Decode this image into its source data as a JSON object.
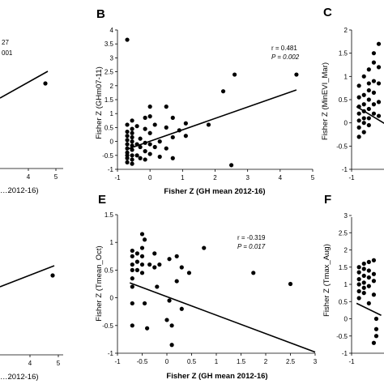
{
  "chart_data": [
    {
      "panel": "A",
      "type": "scatter",
      "partial": true,
      "xlabel": "…2012-16)",
      "xticks": [
        "4",
        "5"
      ],
      "stats": [
        "27",
        "001"
      ],
      "points": [
        [
          4.5,
          1.05
        ]
      ]
    },
    {
      "panel": "B",
      "type": "scatter",
      "xlabel": "Fisher Z (GH mean 2012-16)",
      "ylabel": "Fisher Z (GHm07-11)",
      "xlim": [
        -1,
        5
      ],
      "ylim": [
        -1,
        4
      ],
      "xticks": [
        "-1",
        "0",
        "1",
        "2",
        "3",
        "4",
        "5"
      ],
      "yticks": [
        "-1",
        "-0.5",
        "0",
        "0.5",
        "1",
        "1.5",
        "2",
        "2.5",
        "3",
        "3.5",
        "4"
      ],
      "stats": [
        "r = 0.481",
        "P = 0.002"
      ],
      "fit": [
        [
          -0.75,
          -0.3
        ],
        [
          4.5,
          1.85
        ]
      ],
      "points": [
        [
          -0.7,
          3.65
        ],
        [
          -0.7,
          0.6
        ],
        [
          -0.7,
          0.35
        ],
        [
          -0.7,
          0.2
        ],
        [
          -0.7,
          0.05
        ],
        [
          -0.7,
          -0.1
        ],
        [
          -0.7,
          -0.25
        ],
        [
          -0.7,
          -0.4
        ],
        [
          -0.7,
          -0.5
        ],
        [
          -0.7,
          -0.6
        ],
        [
          -0.7,
          -0.75
        ],
        [
          -0.55,
          0.75
        ],
        [
          -0.55,
          0.45
        ],
        [
          -0.55,
          0.3
        ],
        [
          -0.55,
          0.15
        ],
        [
          -0.55,
          0.0
        ],
        [
          -0.55,
          -0.15
        ],
        [
          -0.55,
          -0.3
        ],
        [
          -0.55,
          -0.5
        ],
        [
          -0.55,
          -0.65
        ],
        [
          -0.55,
          -0.8
        ],
        [
          -0.4,
          0.55
        ],
        [
          -0.4,
          -0.1
        ],
        [
          -0.4,
          -0.5
        ],
        [
          -0.3,
          0.1
        ],
        [
          -0.3,
          -0.2
        ],
        [
          -0.3,
          -0.6
        ],
        [
          -0.15,
          0.85
        ],
        [
          -0.15,
          0.45
        ],
        [
          -0.15,
          -0.05
        ],
        [
          -0.15,
          -0.35
        ],
        [
          -0.15,
          -0.65
        ],
        [
          0.0,
          1.25
        ],
        [
          0.0,
          0.9
        ],
        [
          0.0,
          0.3
        ],
        [
          0.0,
          -0.1
        ],
        [
          0.0,
          -0.45
        ],
        [
          0.15,
          0.6
        ],
        [
          0.15,
          -0.2
        ],
        [
          0.3,
          0.0
        ],
        [
          0.3,
          -0.55
        ],
        [
          0.5,
          1.25
        ],
        [
          0.5,
          0.5
        ],
        [
          0.5,
          -0.25
        ],
        [
          0.7,
          0.85
        ],
        [
          0.7,
          0.15
        ],
        [
          0.7,
          -0.6
        ],
        [
          0.9,
          0.4
        ],
        [
          1.1,
          0.65
        ],
        [
          1.1,
          0.2
        ],
        [
          1.8,
          0.6
        ],
        [
          2.5,
          -0.85
        ],
        [
          2.6,
          2.4
        ],
        [
          2.25,
          1.8
        ],
        [
          4.5,
          2.4
        ]
      ]
    },
    {
      "panel": "C",
      "type": "scatter",
      "partial": true,
      "ylabel": "Fisher Z (MinEVI_Mar)",
      "yticks": [
        "2",
        "1.5",
        "1",
        "0.5",
        "0",
        "-0.5",
        "-1"
      ],
      "xticks": [
        "-1",
        "0"
      ],
      "ylim": [
        -1,
        2
      ],
      "points": [
        [
          -0.85,
          0.8
        ],
        [
          -0.85,
          0.55
        ],
        [
          -0.85,
          0.35
        ],
        [
          -0.85,
          0.2
        ],
        [
          -0.85,
          0.05
        ],
        [
          -0.85,
          -0.1
        ],
        [
          -0.85,
          -0.3
        ],
        [
          -0.75,
          1.0
        ],
        [
          -0.75,
          0.6
        ],
        [
          -0.75,
          0.4
        ],
        [
          -0.75,
          0.25
        ],
        [
          -0.75,
          0.1
        ],
        [
          -0.75,
          0.0
        ],
        [
          -0.75,
          -0.2
        ],
        [
          -0.65,
          1.15
        ],
        [
          -0.65,
          0.85
        ],
        [
          -0.65,
          0.7
        ],
        [
          -0.65,
          0.5
        ],
        [
          -0.65,
          0.3
        ],
        [
          -0.65,
          0.1
        ],
        [
          -0.65,
          -0.05
        ],
        [
          -0.55,
          1.5
        ],
        [
          -0.55,
          1.3
        ],
        [
          -0.55,
          0.9
        ],
        [
          -0.55,
          0.65
        ],
        [
          -0.55,
          0.4
        ],
        [
          -0.55,
          0.2
        ],
        [
          -0.45,
          1.7
        ],
        [
          -0.45,
          1.2
        ],
        [
          -0.45,
          0.85
        ],
        [
          -0.45,
          0.45
        ],
        [
          -0.45,
          0.15
        ],
        [
          -0.15,
          1.25
        ],
        [
          -0.15,
          0.6
        ],
        [
          -0.15,
          0.15
        ],
        [
          -0.15,
          -0.4
        ],
        [
          -0.15,
          -0.7
        ]
      ],
      "fit": [
        [
          -0.9,
          0.35
        ],
        [
          -0.2,
          -0.1
        ]
      ]
    },
    {
      "panel": "D",
      "type": "scatter",
      "partial": true,
      "xlabel": "…2012-16)",
      "xticks": [
        "4",
        "5"
      ],
      "points": [
        [
          4.5,
          -0.05
        ]
      ]
    },
    {
      "panel": "E",
      "type": "scatter",
      "xlabel": "Fisher Z (GH mean 2012-16)",
      "ylabel": "Fisher Z (Tmean_Oct)",
      "xlim": [
        -1,
        3
      ],
      "ylim": [
        -1,
        1.5
      ],
      "xticks": [
        "-1",
        "-0.5",
        "0",
        "0.5",
        "1",
        "1.5",
        "2",
        "2.5",
        "3"
      ],
      "yticks": [
        "-1",
        "-0.5",
        "0",
        "0.5",
        "1",
        "1.5"
      ],
      "stats": [
        "r = -0.319",
        "P = 0.017"
      ],
      "fit": [
        [
          -0.75,
          0.27
        ],
        [
          3.0,
          -0.98
        ]
      ],
      "points": [
        [
          -0.7,
          0.85
        ],
        [
          -0.7,
          0.75
        ],
        [
          -0.7,
          0.6
        ],
        [
          -0.7,
          0.5
        ],
        [
          -0.7,
          0.35
        ],
        [
          -0.7,
          0.2
        ],
        [
          -0.7,
          -0.1
        ],
        [
          -0.7,
          -0.5
        ],
        [
          -0.6,
          0.8
        ],
        [
          -0.6,
          0.65
        ],
        [
          -0.6,
          0.5
        ],
        [
          -0.5,
          1.15
        ],
        [
          -0.5,
          0.9
        ],
        [
          -0.5,
          0.75
        ],
        [
          -0.5,
          0.6
        ],
        [
          -0.5,
          0.45
        ],
        [
          -0.45,
          1.05
        ],
        [
          -0.45,
          -0.1
        ],
        [
          -0.4,
          -0.55
        ],
        [
          -0.35,
          0.6
        ],
        [
          -0.25,
          0.8
        ],
        [
          -0.25,
          0.55
        ],
        [
          -0.2,
          0.2
        ],
        [
          -0.15,
          0.6
        ],
        [
          0.0,
          -0.4
        ],
        [
          0.05,
          0.7
        ],
        [
          0.05,
          -0.05
        ],
        [
          0.1,
          -0.5
        ],
        [
          0.1,
          -0.85
        ],
        [
          0.2,
          0.75
        ],
        [
          0.2,
          0.3
        ],
        [
          0.3,
          0.55
        ],
        [
          0.3,
          -0.2
        ],
        [
          0.45,
          0.45
        ],
        [
          0.75,
          0.9
        ],
        [
          1.75,
          0.45
        ],
        [
          2.5,
          0.25
        ]
      ]
    },
    {
      "panel": "F",
      "type": "scatter",
      "partial": true,
      "ylabel": "Fisher Z (Tmax_Aug)",
      "yticks": [
        "3",
        "2.5",
        "2",
        "1.5",
        "1",
        "0.5",
        "0",
        "-0.5",
        "-1"
      ],
      "xticks": [
        "-1"
      ],
      "ylim": [
        -1,
        3
      ],
      "points": [
        [
          -0.85,
          1.5
        ],
        [
          -0.85,
          1.35
        ],
        [
          -0.85,
          1.15
        ],
        [
          -0.85,
          1.0
        ],
        [
          -0.85,
          0.8
        ],
        [
          -0.85,
          0.6
        ],
        [
          -0.75,
          1.6
        ],
        [
          -0.75,
          1.45
        ],
        [
          -0.75,
          1.25
        ],
        [
          -0.75,
          1.05
        ],
        [
          -0.75,
          0.9
        ],
        [
          -0.75,
          0.75
        ],
        [
          -0.65,
          1.65
        ],
        [
          -0.65,
          1.4
        ],
        [
          -0.65,
          1.2
        ],
        [
          -0.65,
          0.95
        ],
        [
          -0.65,
          0.45
        ],
        [
          -0.55,
          1.7
        ],
        [
          -0.55,
          1.3
        ],
        [
          -0.55,
          1.1
        ],
        [
          -0.55,
          0.7
        ],
        [
          -0.5,
          0.0
        ],
        [
          -0.5,
          -0.3
        ],
        [
          -0.5,
          -0.5
        ],
        [
          -0.55,
          -0.7
        ]
      ],
      "fit": [
        [
          -0.9,
          0.45
        ],
        [
          -0.4,
          0.1
        ]
      ]
    }
  ]
}
